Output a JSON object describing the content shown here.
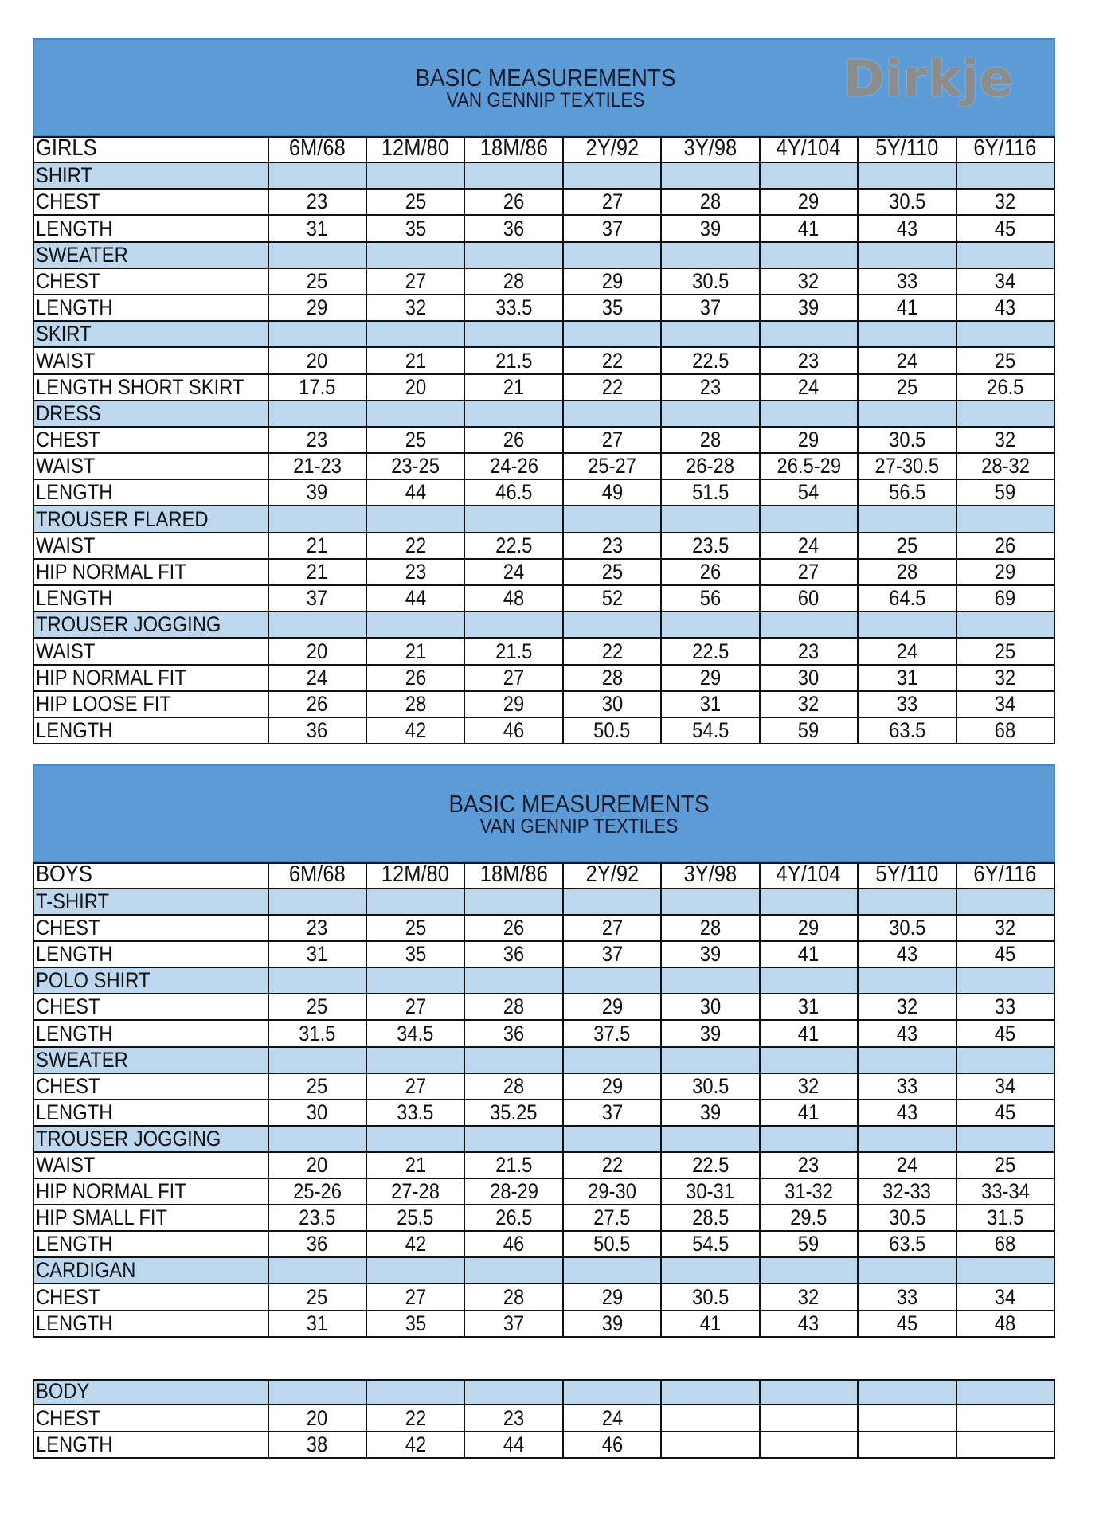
{
  "tables": [
    {
      "title": "BASIC MEASUREMENTS",
      "subtitle": "VAN GENNIP TEXTILES",
      "logo": "Dirkje",
      "header": [
        "GIRLS",
        "6M/68",
        "12M/80",
        "18M/86",
        "2Y/92",
        "3Y/98",
        "4Y/104",
        "5Y/110",
        "6Y/116"
      ],
      "sections": [
        {
          "name": "SHIRT",
          "rows": [
            {
              "label": "CHEST",
              "values": [
                23,
                25,
                26,
                27,
                28,
                29,
                30.5,
                32
              ]
            },
            {
              "label": "LENGTH",
              "values": [
                31,
                35,
                36,
                37,
                39,
                41,
                43,
                45
              ]
            }
          ]
        },
        {
          "name": "SWEATER",
          "rows": [
            {
              "label": "CHEST",
              "values": [
                25,
                27,
                28,
                29,
                30.5,
                32,
                33,
                34
              ]
            },
            {
              "label": "LENGTH",
              "values": [
                29,
                32,
                33.5,
                35,
                37,
                39,
                41,
                43
              ]
            }
          ]
        },
        {
          "name": "SKIRT",
          "rows": [
            {
              "label": "WAIST",
              "values": [
                20,
                21,
                21.5,
                22,
                22.5,
                23,
                24,
                25
              ]
            },
            {
              "label": "LENGTH SHORT SKIRT",
              "values": [
                17.5,
                20,
                21,
                22,
                23,
                24,
                25,
                26.5
              ]
            }
          ]
        },
        {
          "name": "DRESS",
          "rows": [
            {
              "label": "CHEST",
              "values": [
                23,
                25,
                26,
                27,
                28,
                29,
                30.5,
                32
              ]
            },
            {
              "label": "WAIST",
              "values": [
                "21-23",
                "23-25",
                "24-26",
                "25-27",
                "26-28",
                "26.5-29",
                "27-30.5",
                "28-32"
              ]
            },
            {
              "label": "LENGTH",
              "values": [
                39,
                44,
                46.5,
                49,
                51.5,
                54,
                56.5,
                59
              ]
            }
          ]
        },
        {
          "name": "TROUSER FLARED",
          "rows": [
            {
              "label": "WAIST",
              "values": [
                21,
                22,
                22.5,
                23,
                23.5,
                24,
                25,
                26
              ]
            },
            {
              "label": "HIP NORMAL FIT",
              "values": [
                21,
                23,
                24,
                25,
                26,
                27,
                28,
                29
              ]
            },
            {
              "label": "LENGTH",
              "values": [
                37,
                44,
                48,
                52,
                56,
                60,
                64.5,
                69
              ]
            }
          ]
        },
        {
          "name": "TROUSER JOGGING",
          "rows": [
            {
              "label": "WAIST",
              "values": [
                20,
                21,
                21.5,
                22,
                22.5,
                23,
                24,
                25
              ]
            },
            {
              "label": "HIP NORMAL FIT",
              "values": [
                24,
                26,
                27,
                28,
                29,
                30,
                31,
                32
              ]
            },
            {
              "label": "HIP LOOSE FIT",
              "values": [
                26,
                28,
                29,
                30,
                31,
                32,
                33,
                34
              ]
            },
            {
              "label": "LENGTH",
              "values": [
                36,
                42,
                46,
                50.5,
                54.5,
                59,
                63.5,
                68
              ]
            }
          ]
        }
      ]
    },
    {
      "title": "BASIC MEASUREMENTS",
      "subtitle": "VAN GENNIP TEXTILES",
      "header": [
        "BOYS",
        "6M/68",
        "12M/80",
        "18M/86",
        "2Y/92",
        "3Y/98",
        "4Y/104",
        "5Y/110",
        "6Y/116"
      ],
      "sections": [
        {
          "name": "T-SHIRT",
          "rows": [
            {
              "label": "CHEST",
              "values": [
                23,
                25,
                26,
                27,
                28,
                29,
                30.5,
                32
              ]
            },
            {
              "label": "LENGTH",
              "values": [
                31,
                35,
                36,
                37,
                39,
                41,
                43,
                45
              ]
            }
          ]
        },
        {
          "name": "POLO SHIRT",
          "rows": [
            {
              "label": "CHEST",
              "values": [
                25,
                27,
                28,
                29,
                30,
                31,
                32,
                33
              ]
            },
            {
              "label": "LENGTH",
              "values": [
                31.5,
                34.5,
                36,
                37.5,
                39,
                41,
                43,
                45
              ]
            }
          ]
        },
        {
          "name": "SWEATER",
          "rows": [
            {
              "label": "CHEST",
              "values": [
                25,
                27,
                28,
                29,
                30.5,
                32,
                33,
                34
              ]
            },
            {
              "label": "LENGTH",
              "values": [
                30,
                33.5,
                35.25,
                37,
                39,
                41,
                43,
                45
              ]
            }
          ]
        },
        {
          "name": "TROUSER JOGGING",
          "rows": [
            {
              "label": "WAIST",
              "values": [
                20,
                21,
                21.5,
                22,
                22.5,
                23,
                24,
                25
              ]
            },
            {
              "label": "HIP NORMAL FIT",
              "values": [
                "25-26",
                "27-28",
                "28-29",
                "29-30",
                "30-31",
                "31-32",
                "32-33",
                "33-34"
              ]
            },
            {
              "label": "HIP SMALL FIT",
              "values": [
                23.5,
                25.5,
                26.5,
                27.5,
                28.5,
                29.5,
                30.5,
                31.5
              ]
            },
            {
              "label": "LENGTH",
              "values": [
                36,
                42,
                46,
                50.5,
                54.5,
                59,
                63.5,
                68
              ]
            }
          ]
        },
        {
          "name": "CARDIGAN",
          "rows": [
            {
              "label": "CHEST",
              "values": [
                25,
                27,
                28,
                29,
                30.5,
                32,
                33,
                34
              ]
            },
            {
              "label": "LENGTH",
              "values": [
                31,
                35,
                37,
                39,
                41,
                43,
                45,
                48
              ]
            }
          ]
        }
      ]
    },
    {
      "sections": [
        {
          "name": "BODY",
          "rows": [
            {
              "label": "CHEST",
              "values": [
                20,
                22,
                23,
                24
              ]
            },
            {
              "label": "LENGTH",
              "values": [
                38,
                42,
                44,
                46
              ]
            }
          ]
        }
      ]
    }
  ]
}
